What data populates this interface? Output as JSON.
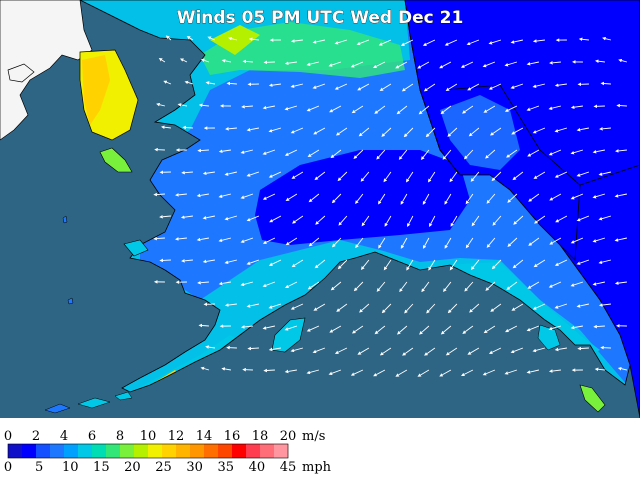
{
  "title": "Winds 05 PM UTC Wed Dec 21",
  "legend": {
    "colors": [
      "#1010c8",
      "#0000ff",
      "#1450ff",
      "#1e78ff",
      "#00a0ff",
      "#00c8e6",
      "#00dcb4",
      "#32e678",
      "#78f03c",
      "#b4f000",
      "#f0f000",
      "#ffd200",
      "#ffb400",
      "#ff9600",
      "#ff6e00",
      "#ff4600",
      "#ff0000",
      "#ff3c50",
      "#ff6e78",
      "#ff96a0"
    ],
    "ms": {
      "ticks": [
        "0",
        "2",
        "4",
        "6",
        "8",
        "10",
        "12",
        "14",
        "16",
        "18",
        "20"
      ],
      "unit": "m/s"
    },
    "mph": {
      "ticks": [
        "0",
        "5",
        "10",
        "15",
        "20",
        "25",
        "30",
        "35",
        "40",
        "45"
      ],
      "unit": "mph"
    }
  },
  "colors": {
    "ocean": "#2e6585",
    "foreign_land": "#f5f5f5",
    "calm": "#0000ff",
    "light": "#1e78ff",
    "moderate": "#00c8e6",
    "fresh": "#78f03c",
    "strong": "#f0f000"
  }
}
